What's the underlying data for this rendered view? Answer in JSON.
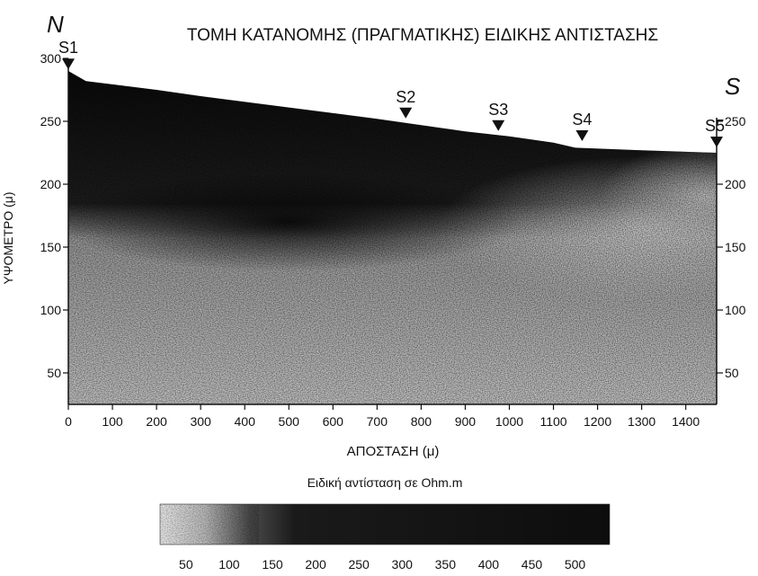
{
  "chart_data": {
    "type": "heatmap",
    "title": "ΤΟΜΗ ΚΑΤΑΝΟΜΗΣ (ΠΡΑΓΜΑΤΙΚΗΣ) ΕΙΔΙΚΗΣ ΑΝΤΙΣΤΑΣΗΣ",
    "xlabel": "ΑΠΟΣΤΑΣΗ (μ)",
    "ylabel": "ΥΨΟΜΕΤΡΟ (μ)",
    "xlim": [
      0,
      1470
    ],
    "ylim": [
      25,
      300
    ],
    "x_ticks": [
      0,
      100,
      200,
      300,
      400,
      500,
      600,
      700,
      800,
      900,
      1000,
      1100,
      1200,
      1300,
      1400
    ],
    "y_ticks_left": [
      50,
      100,
      150,
      200,
      250,
      300
    ],
    "y_ticks_right": [
      50,
      100,
      150,
      200,
      250
    ],
    "orientation": {
      "left": "N",
      "right": "S"
    },
    "stations": [
      {
        "label": "S1",
        "x": 0,
        "elevation": 287
      },
      {
        "label": "S2",
        "x": 765,
        "elevation": 248
      },
      {
        "label": "S3",
        "x": 975,
        "elevation": 238
      },
      {
        "label": "S4",
        "x": 1165,
        "elevation": 230
      },
      {
        "label": "S5",
        "x": 1470,
        "elevation": 225
      }
    ],
    "surface_profile": [
      {
        "x": 0,
        "y": 290
      },
      {
        "x": 40,
        "y": 282
      },
      {
        "x": 200,
        "y": 275
      },
      {
        "x": 300,
        "y": 270
      },
      {
        "x": 500,
        "y": 261
      },
      {
        "x": 700,
        "y": 252
      },
      {
        "x": 800,
        "y": 247
      },
      {
        "x": 900,
        "y": 242
      },
      {
        "x": 1000,
        "y": 238
      },
      {
        "x": 1100,
        "y": 233
      },
      {
        "x": 1150,
        "y": 229
      },
      {
        "x": 1300,
        "y": 227
      },
      {
        "x": 1470,
        "y": 225
      }
    ],
    "colorbar": {
      "label": "Ειδική αντίσταση σε Ohm.m",
      "ticks": [
        50,
        100,
        150,
        200,
        250,
        300,
        350,
        400,
        450,
        500
      ],
      "range": [
        20,
        540
      ],
      "colors": [
        "#eeeeee",
        "#111111"
      ]
    }
  }
}
